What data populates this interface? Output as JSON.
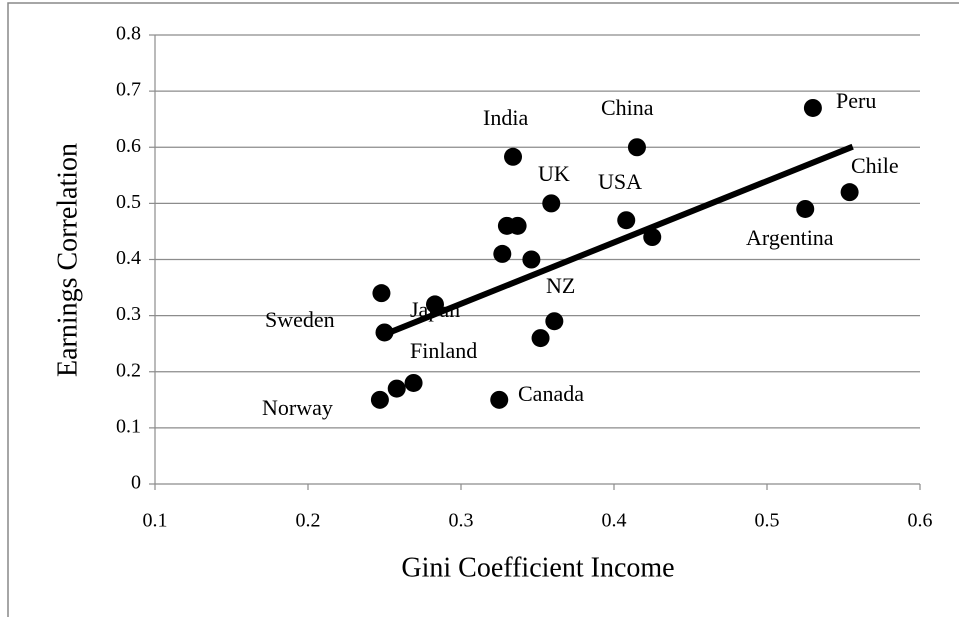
{
  "chart_data": {
    "type": "scatter",
    "x_label": "Gini Coefficient Income",
    "y_label": "Earnings  Correlation",
    "x": [
      0.248,
      0.25,
      0.247,
      0.258,
      0.269,
      0.283,
      0.327,
      0.33,
      0.337,
      0.334,
      0.346,
      0.359,
      0.352,
      0.361,
      0.325,
      0.408,
      0.415,
      0.425,
      0.525,
      0.554,
      0.53
    ],
    "values": [
      0.34,
      0.27,
      0.15,
      0.17,
      0.18,
      0.32,
      0.41,
      0.46,
      0.46,
      0.583,
      0.4,
      0.5,
      0.26,
      0.29,
      0.15,
      0.47,
      0.6,
      0.44,
      0.49,
      0.52,
      0.67
    ],
    "color": "#000000",
    "trendline": {
      "x": [
        0.246,
        0.556
      ],
      "y": [
        0.262,
        0.601
      ]
    },
    "annotations": [
      "India",
      "China",
      "Peru",
      "UK",
      "USA",
      "Chile",
      "Argentina",
      "NZ",
      "Sweden",
      "Japan",
      "Finland",
      "Norway",
      "Canada"
    ],
    "xlim": [
      0.1,
      0.6
    ],
    "xticks": [
      0.1,
      0.2,
      0.3,
      0.4,
      0.5,
      0.6
    ],
    "ylim": [
      0,
      0.8
    ],
    "yticks": [
      0,
      0.1,
      0.2,
      0.3,
      0.4,
      0.5,
      0.6,
      0.7,
      0.8
    ],
    "grid": true
  }
}
